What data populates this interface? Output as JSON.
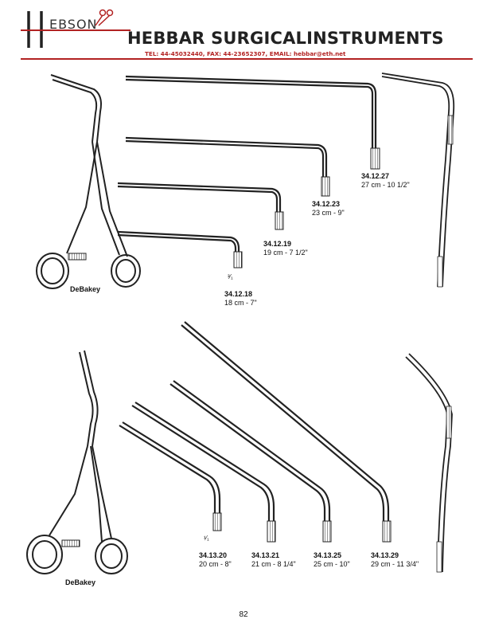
{
  "header": {
    "logo_text": "HEBSON",
    "company": "HEBBAR SURGICALINSTRUMENTS",
    "contact": "TEL: 44-45032440, FAX: 44-23652307, EMAIL: hebbar@eth.net"
  },
  "sections": [
    {
      "name_label": "DeBakey",
      "scale_mark": "³⁄₁",
      "items": [
        {
          "code": "34.12.27",
          "size": "27 cm - 10 1/2\""
        },
        {
          "code": "34.12.23",
          "size": "23 cm - 9\""
        },
        {
          "code": "34.12.19",
          "size": "19 cm - 7 1/2\""
        },
        {
          "code": "34.12.18",
          "size": "18 cm - 7\""
        }
      ]
    },
    {
      "name_label": "DeBakey",
      "scale_mark": "¹⁄₁",
      "items": [
        {
          "code": "34.13.20",
          "size": "20 cm - 8\""
        },
        {
          "code": "34.13.21",
          "size": "21 cm - 8 1/4\""
        },
        {
          "code": "34.13.25",
          "size": "25 cm - 10\""
        },
        {
          "code": "34.13.29",
          "size": "29 cm - 11 3/4\""
        }
      ]
    }
  ],
  "page_number": "82"
}
